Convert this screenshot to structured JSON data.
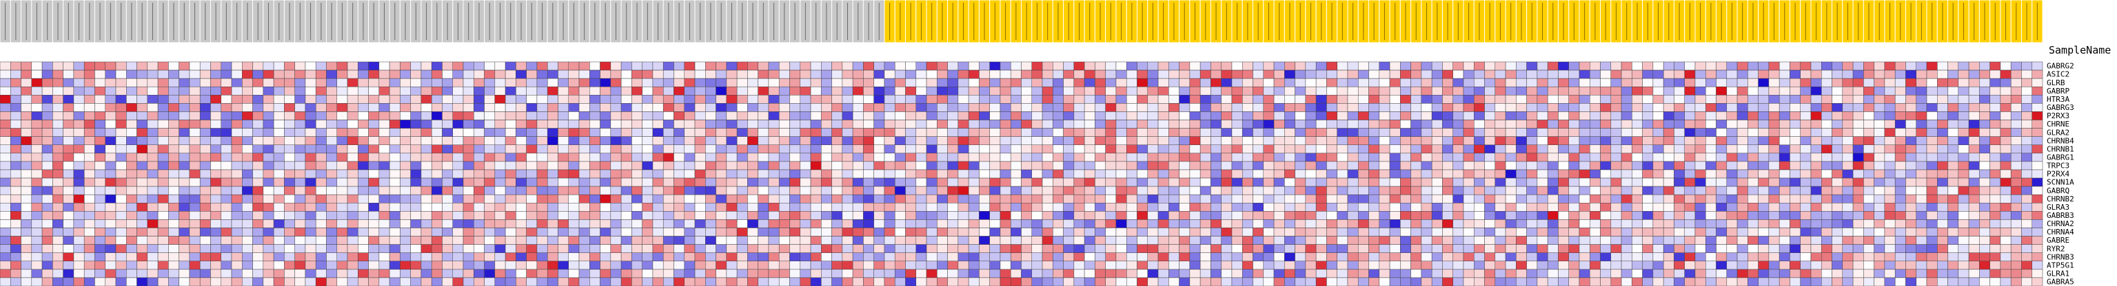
{
  "chart_data": {
    "type": "heatmap",
    "column_header": "SampleName",
    "columns": {
      "group_a_count": 84,
      "group_b_count": 110,
      "group_a_color": "#c8c8c8",
      "group_b_color": "#ffd000"
    },
    "rows": [
      "GABRG2",
      "ASIC2",
      "GLRB",
      "GABRP",
      "HTR3A",
      "GABRG3",
      "P2RX3",
      "CHRNE",
      "GLRA2",
      "CHRNB4",
      "CHRNB1",
      "GABRG1",
      "TRPC3",
      "P2RX4",
      "SCNN1A",
      "GABRQ",
      "CHRNB2",
      "GLRA3",
      "GABRB3",
      "CHRNA2",
      "CHRNA4",
      "GABRE",
      "RYR2",
      "CHRNB3",
      "ATP5G1",
      "GLRA1",
      "GABRA5"
    ],
    "color_scale": {
      "low": "#1a0ccf",
      "mid": "#ffffff",
      "high": "#d8101a",
      "range": [
        -1,
        1
      ]
    },
    "value_seed": 20240531
  }
}
